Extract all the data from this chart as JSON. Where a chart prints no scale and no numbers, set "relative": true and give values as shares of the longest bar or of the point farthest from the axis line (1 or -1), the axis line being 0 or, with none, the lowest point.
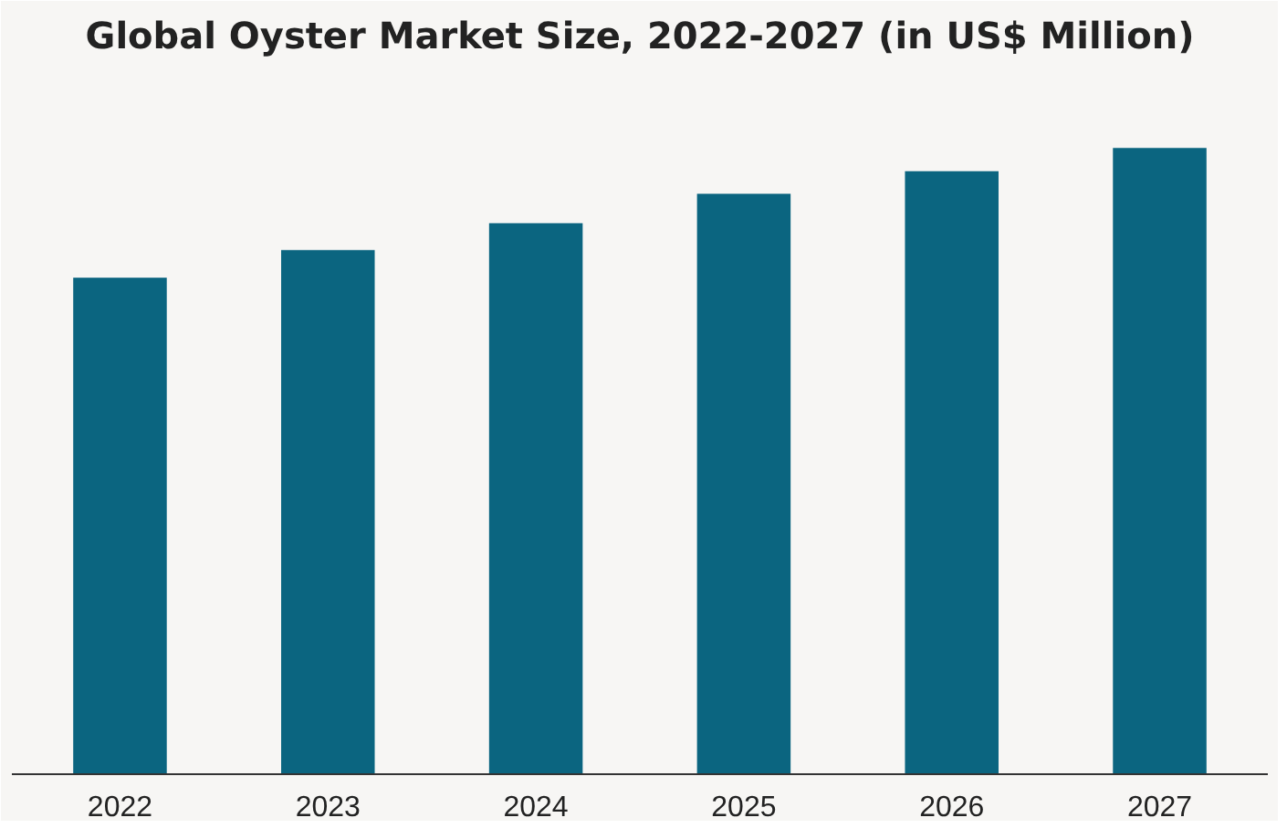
{
  "chart_data": {
    "type": "bar",
    "title": "Global Oyster Market Size, 2022-2027 (in US$ Million)",
    "categories": [
      "2022",
      "2023",
      "2024",
      "2025",
      "2026",
      "2027"
    ],
    "values": [
      0.793,
      0.837,
      0.88,
      0.927,
      0.963,
      1
    ],
    "color": "#0b6580",
    "relative": true,
    "grid": false
  }
}
